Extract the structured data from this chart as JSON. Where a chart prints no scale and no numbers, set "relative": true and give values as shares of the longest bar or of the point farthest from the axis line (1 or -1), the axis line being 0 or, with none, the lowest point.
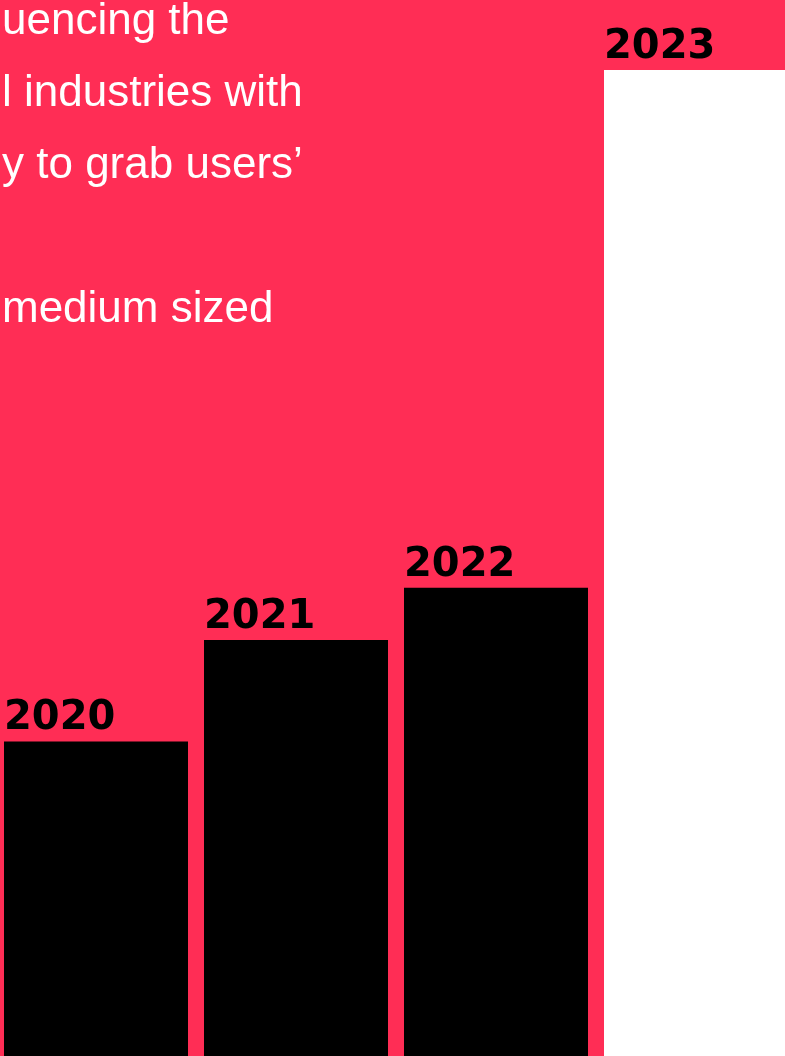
{
  "chart_data": {
    "type": "bar",
    "relative": true,
    "categories": [
      "2020",
      "2021",
      "2022",
      "2023"
    ],
    "values": [
      0.319,
      0.422,
      0.475,
      1
    ],
    "colors": [
      "#000000",
      "#000000",
      "#000000",
      "#ffffff"
    ],
    "annotations": [
      "uencing the",
      "l industries with",
      "y to grab users’",
      "medium sized"
    ]
  }
}
